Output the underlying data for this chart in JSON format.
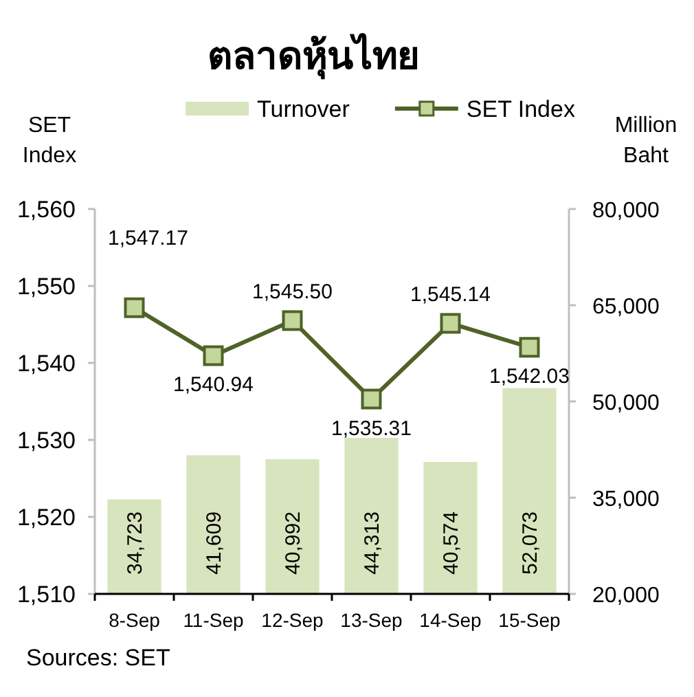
{
  "chart_data": {
    "type": "bar",
    "title": "ตลาดหุ้นไทย",
    "categories": [
      "8-Sep",
      "11-Sep",
      "12-Sep",
      "13-Sep",
      "14-Sep",
      "15-Sep"
    ],
    "series": [
      {
        "name": "Turnover",
        "axis": "y2",
        "color": "#d7e4bd",
        "values": [
          34723,
          41609,
          40992,
          44313,
          40574,
          52073
        ],
        "value_labels": [
          "34,723",
          "41,609",
          "40,992",
          "44,313",
          "40,574",
          "52,073"
        ]
      },
      {
        "name": "SET Index",
        "type": "line",
        "color": "#4f6228",
        "marker": "square",
        "values": [
          1547.17,
          1540.94,
          1545.5,
          1535.31,
          1545.14,
          1542.03
        ],
        "value_labels": [
          "1,547.17",
          "1,540.94",
          "1,545.50",
          "1,535.31",
          "1,545.14",
          "1,542.03"
        ]
      }
    ],
    "ylabel": "SET Index",
    "y2label": "Million Baht",
    "ylim": [
      1510,
      1560
    ],
    "yticks": [
      {
        "value": 1510,
        "label": "1,510"
      },
      {
        "value": 1520,
        "label": "1,520"
      },
      {
        "value": 1530,
        "label": "1,530"
      },
      {
        "value": 1540,
        "label": "1,540"
      },
      {
        "value": 1550,
        "label": "1,550"
      },
      {
        "value": 1560,
        "label": "1,560"
      }
    ],
    "y2lim": [
      20000,
      80000
    ],
    "y2ticks": [
      {
        "value": 20000,
        "label": "20,000"
      },
      {
        "value": 35000,
        "label": "35,000"
      },
      {
        "value": 50000,
        "label": "50,000"
      },
      {
        "value": 65000,
        "label": "65,000"
      },
      {
        "value": 80000,
        "label": "80,000"
      }
    ],
    "legend": "top",
    "grid": false,
    "annotations": [
      "Sources: SET"
    ]
  }
}
